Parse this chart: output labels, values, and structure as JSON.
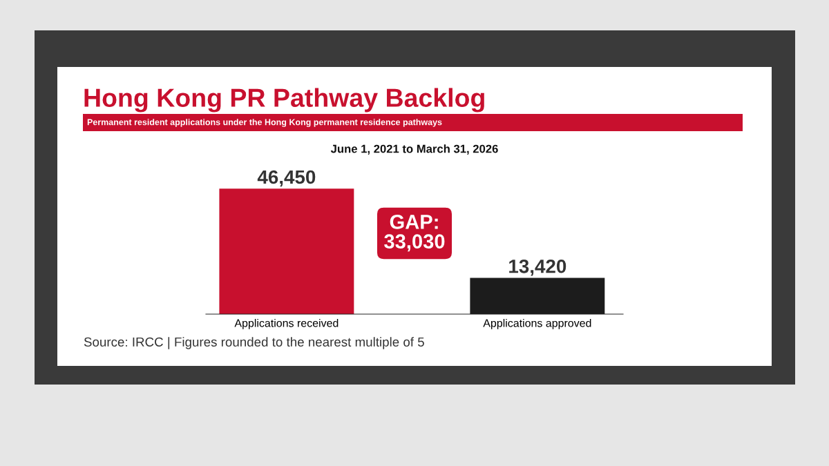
{
  "chart_data": {
    "type": "bar",
    "title": "Hong Kong PR Pathway Backlog",
    "subtitle": "Permanent resident applications under the Hong Kong permanent residence pathways",
    "categories": [
      "Applications received",
      "Applications approved"
    ],
    "values": [
      46450,
      13420
    ],
    "colors": [
      "#c8102e",
      "#1c1c1c"
    ],
    "data_labels": true,
    "value_labels": [
      "46,450",
      "13,420"
    ],
    "annotations": [
      "June 1, 2021 to March 31, 2026",
      "GAP:\n33,030",
      "Source: IRCC | Figures rounded to the nearest multiple of 5"
    ]
  }
}
